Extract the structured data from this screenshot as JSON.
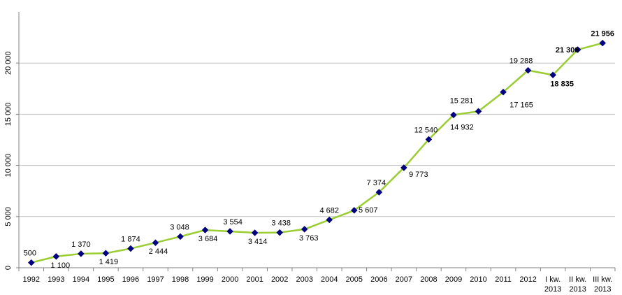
{
  "chart_data": {
    "type": "line",
    "title": "",
    "xlabel": "",
    "ylabel": "",
    "ylim": [
      0,
      25000
    ],
    "y_ticks": [
      "0",
      "5 000",
      "10 000",
      "15 000",
      "20 000"
    ],
    "y_tick_values": [
      0,
      5000,
      10000,
      15000,
      20000
    ],
    "grid": "horizontal",
    "categories": [
      [
        "1992"
      ],
      [
        "1993"
      ],
      [
        "1994"
      ],
      [
        "1995"
      ],
      [
        "1996"
      ],
      [
        "1997"
      ],
      [
        "1998"
      ],
      [
        "1999"
      ],
      [
        "2000"
      ],
      [
        "2001"
      ],
      [
        "2002"
      ],
      [
        "2003"
      ],
      [
        "2004"
      ],
      [
        "2005"
      ],
      [
        "2006"
      ],
      [
        "2007"
      ],
      [
        "2008"
      ],
      [
        "2009"
      ],
      [
        "2010"
      ],
      [
        "2011"
      ],
      [
        "2012"
      ],
      [
        "I kw.",
        "2013"
      ],
      [
        "II kw.",
        "2013"
      ],
      [
        "III kw.",
        "2013"
      ]
    ],
    "values": [
      500,
      1100,
      1370,
      1419,
      1874,
      2444,
      3048,
      3684,
      3554,
      3414,
      3438,
      3763,
      4682,
      5607,
      7374,
      9773,
      12540,
      14932,
      15281,
      17165,
      19288,
      18835,
      21308,
      21956
    ],
    "data_labels": [
      "500",
      "1 100",
      "1 370",
      "1 419",
      "1 874",
      "2 444",
      "3 048",
      "3 684",
      "3 554",
      "3 414",
      "3 438",
      "3 763",
      "4 682",
      "5 607",
      "7 374",
      "9 773",
      "12 540",
      "14 932",
      "15 281",
      "17 165",
      "19 288",
      "18 835",
      "21 308",
      "21 956"
    ],
    "bold_labels": [
      21,
      22,
      23
    ],
    "colors": {
      "line": "#9ACD32",
      "marker": "#000080",
      "grid": "#C0C0C0",
      "axis": "#808080"
    }
  }
}
